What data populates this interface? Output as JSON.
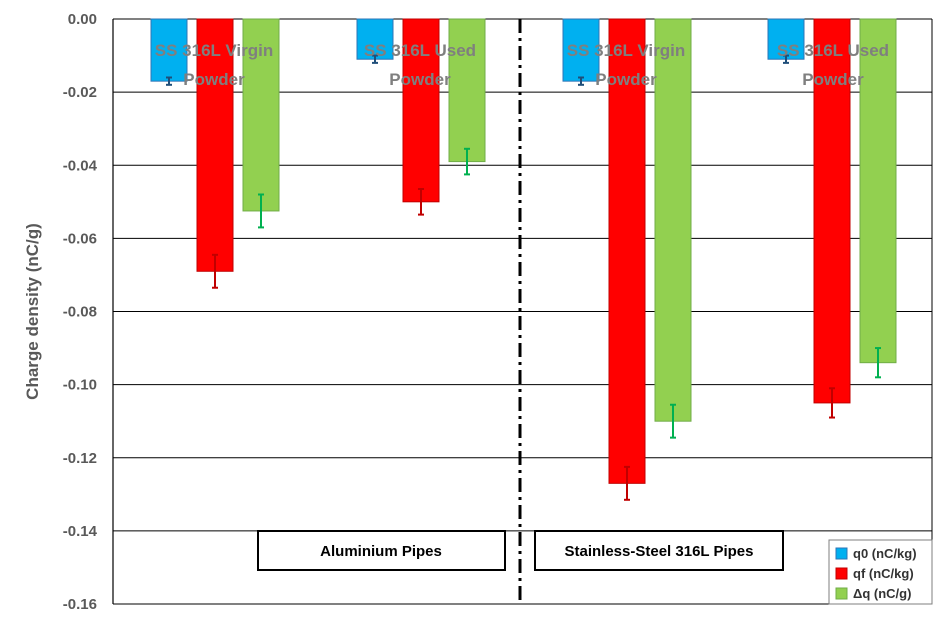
{
  "chart_data": {
    "type": "bar",
    "ylabel": "Charge density (nC/g)",
    "ylim": [
      -0.16,
      0.0
    ],
    "yticks": [
      "0.00",
      "-0.02",
      "-0.04",
      "-0.06",
      "-0.08",
      "-0.10",
      "-0.12",
      "-0.14",
      "-0.16"
    ],
    "ytick_values": [
      0.0,
      -0.02,
      -0.04,
      -0.06,
      -0.08,
      -0.1,
      -0.12,
      -0.14,
      -0.16
    ],
    "grid": true,
    "legend_position": "bottom-right",
    "categories": [
      "SS 316L Virgin Powder",
      "SS 316L Used Powder",
      "SS 316L Virgin Powder",
      "SS 316L Used Powder"
    ],
    "category_lines": [
      [
        "SS 316L Virgin",
        "Powder"
      ],
      [
        "SS 316L Used",
        "Powder"
      ],
      [
        "SS 316L Virgin",
        "Powder"
      ],
      [
        "SS 316L Used",
        "Powder"
      ]
    ],
    "groups": [
      "Aluminium Pipes",
      "Stainless-Steel 316L Pipes"
    ],
    "series": [
      {
        "name": "q0 (nC/kg)",
        "color": "#00b0f0",
        "border": "#2e75b6",
        "values": [
          -0.017,
          -0.011,
          -0.017,
          -0.011
        ],
        "errors": [
          0.001,
          0.001,
          0.001,
          0.001
        ],
        "error_color": "#1f4e79"
      },
      {
        "name": "qf (nC/kg)",
        "color": "#ff0000",
        "border": "#c00000",
        "values": [
          -0.069,
          -0.05,
          -0.127,
          -0.105
        ],
        "errors": [
          0.0045,
          0.0035,
          0.0045,
          0.004
        ],
        "error_color": "#c00000"
      },
      {
        "name": "Δq (nC/g)",
        "color": "#92d050",
        "border": "#70ad47",
        "values": [
          -0.0525,
          -0.039,
          -0.11,
          -0.094
        ],
        "errors": [
          0.0045,
          0.0035,
          0.0045,
          0.004
        ],
        "error_color": "#00b050"
      }
    ]
  }
}
